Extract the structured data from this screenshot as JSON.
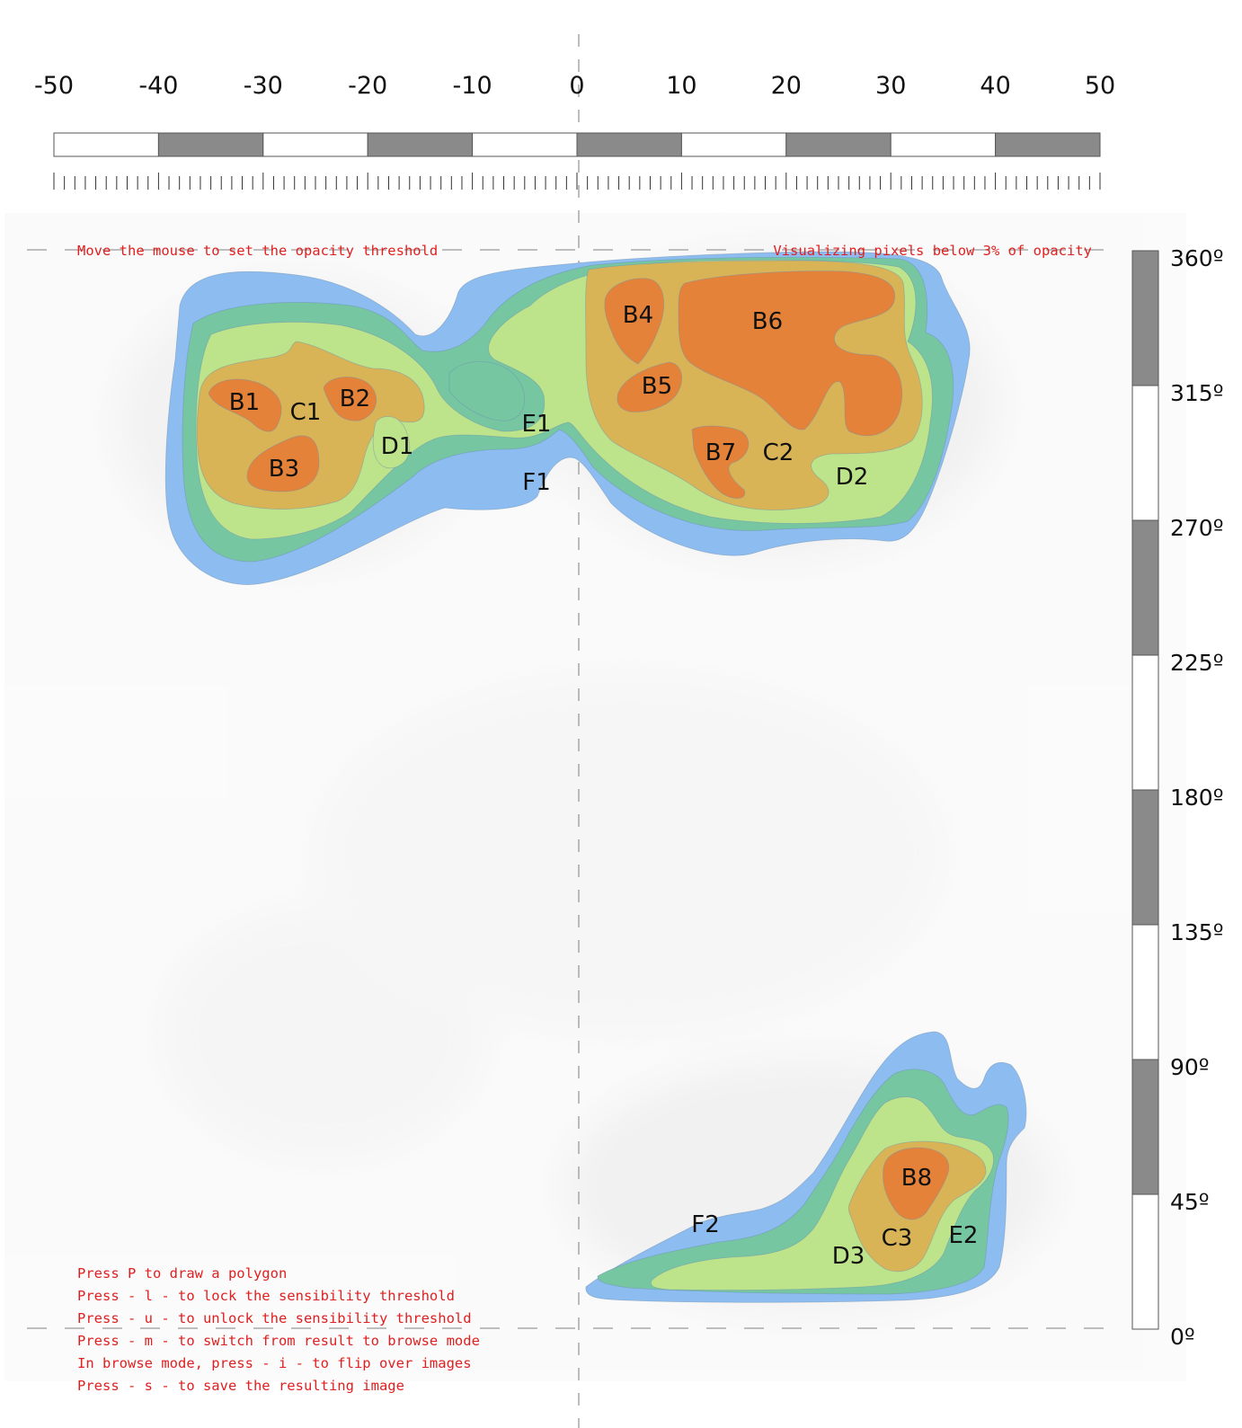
{
  "horizontal_scale": {
    "labels": [
      "-50",
      "-40",
      "-30",
      "-20",
      "-10",
      "0",
      "10",
      "20",
      "30",
      "40",
      "50"
    ],
    "values": [
      -50,
      -40,
      -30,
      -20,
      -10,
      0,
      10,
      20,
      30,
      40,
      50
    ]
  },
  "vertical_scale": {
    "labels": [
      "360º",
      "315º",
      "270º",
      "225º",
      "180º",
      "135º",
      "90º",
      "45º",
      "0º"
    ],
    "values": [
      360,
      315,
      270,
      225,
      180,
      135,
      90,
      45,
      0
    ]
  },
  "status": {
    "left": "Move the mouse to set the opacity threshold",
    "right": "Visualizing pixels below 3% of opacity"
  },
  "instructions": [
    "Press P to draw a polygon",
    "Press - l - to lock the sensibility threshold",
    "Press - u - to unlock the sensibility threshold",
    "Press - m - to switch from result to browse mode",
    "In browse mode, press - i - to flip over images",
    "Press - s - to save the resulting image"
  ],
  "regions": {
    "B1": "B1",
    "B2": "B2",
    "B3": "B3",
    "B4": "B4",
    "B5": "B5",
    "B6": "B6",
    "B7": "B7",
    "B8": "B8",
    "C1": "C1",
    "C2": "C2",
    "C3": "C3",
    "D1": "D1",
    "D2": "D2",
    "D3": "D3",
    "E1": "E1",
    "E2": "E2",
    "F1": "F1",
    "F2": "F2"
  },
  "colors": {
    "level_f": "#8cbcf0",
    "level_e": "#76c6a2",
    "level_d": "#bde48a",
    "level_c": "#d9b457",
    "level_b": "#e5823a",
    "text_hint": "#e02020",
    "bar_dark": "#8a8a8a",
    "bar_light": "#ffffff"
  }
}
